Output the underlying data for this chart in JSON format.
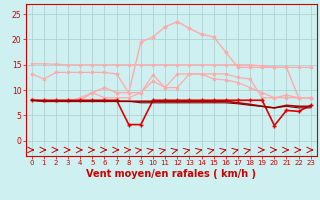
{
  "background_color": "#cef0f0",
  "grid_color": "#aacccc",
  "xlabel": "Vent moyen/en rafales ( km/h )",
  "xlabel_color": "#cc0000",
  "xlabel_fontsize": 7,
  "xtick_labels": [
    "0",
    "1",
    "2",
    "3",
    "4",
    "5",
    "6",
    "7",
    "8",
    "9",
    "10",
    "11",
    "12",
    "13",
    "14",
    "15",
    "16",
    "17",
    "18",
    "19",
    "20",
    "21",
    "22",
    "23"
  ],
  "ytick_values": [
    0,
    5,
    10,
    15,
    20,
    25
  ],
  "ylim": [
    -3,
    27
  ],
  "xlim": [
    -0.5,
    23.5
  ],
  "line_flat15_color": "#ffaaaa",
  "line_flat15_y": [
    15.2,
    15.2,
    15.1,
    15.0,
    15.0,
    15.0,
    15.0,
    15.0,
    15.0,
    15.0,
    15.0,
    15.0,
    15.0,
    15.0,
    15.0,
    15.0,
    15.0,
    15.0,
    15.0,
    14.8,
    14.5,
    14.5,
    14.5,
    14.5
  ],
  "line_mid_color": "#ffaaaa",
  "line_mid_y": [
    13.2,
    12.2,
    13.5,
    13.5,
    13.5,
    13.5,
    13.5,
    13.2,
    9.5,
    9.5,
    13.0,
    10.5,
    13.2,
    13.2,
    13.2,
    12.2,
    12.0,
    11.5,
    10.5,
    9.5,
    8.5,
    9.0,
    8.5,
    8.5
  ],
  "line_peak_color": "#ffaaaa",
  "line_peak_y": [
    8.2,
    7.8,
    7.8,
    7.8,
    8.0,
    9.5,
    10.5,
    9.5,
    9.5,
    19.5,
    20.5,
    22.5,
    23.5,
    22.2,
    21.0,
    20.5,
    17.5,
    14.5,
    14.5,
    14.5,
    14.5,
    14.5,
    8.5,
    8.5
  ],
  "line_lower_color": "#ffaaaa",
  "line_lower_y": [
    8.2,
    7.8,
    7.8,
    7.8,
    8.5,
    9.5,
    8.5,
    8.5,
    8.5,
    9.5,
    11.8,
    10.5,
    10.5,
    13.2,
    13.2,
    13.2,
    13.2,
    12.5,
    12.2,
    8.5,
    8.5,
    8.5,
    8.5,
    8.5
  ],
  "line_red1_color": "#dd0000",
  "line_red1_y": [
    8.0,
    8.0,
    8.0,
    8.0,
    8.0,
    8.0,
    8.0,
    8.0,
    3.2,
    3.2,
    8.0,
    8.0,
    8.0,
    8.0,
    8.0,
    8.0,
    8.0,
    8.0,
    8.0,
    8.0,
    3.0,
    6.0,
    5.8,
    7.0
  ],
  "line_red2_color": "#aa0000",
  "line_red2_y": [
    8.0,
    7.8,
    7.8,
    7.8,
    7.8,
    7.8,
    7.8,
    7.8,
    7.8,
    7.8,
    7.8,
    7.8,
    7.8,
    7.8,
    7.8,
    7.8,
    7.8,
    7.5,
    7.2,
    6.8,
    6.5,
    7.0,
    6.8,
    6.8
  ],
  "line_red3_color": "#880000",
  "line_red3_y": [
    8.0,
    7.8,
    7.8,
    7.8,
    7.8,
    7.8,
    7.8,
    7.8,
    7.8,
    7.5,
    7.5,
    7.5,
    7.5,
    7.5,
    7.5,
    7.5,
    7.5,
    7.3,
    7.0,
    6.8,
    6.5,
    6.8,
    6.5,
    6.5
  ],
  "arrow_angles_deg": [
    0,
    0,
    0,
    0,
    0,
    0,
    0,
    0,
    30,
    60,
    70,
    70,
    70,
    70,
    70,
    70,
    70,
    70,
    70,
    0,
    0,
    0,
    0,
    0
  ],
  "tick_color": "#cc0000",
  "axis_color": "#cc0000"
}
